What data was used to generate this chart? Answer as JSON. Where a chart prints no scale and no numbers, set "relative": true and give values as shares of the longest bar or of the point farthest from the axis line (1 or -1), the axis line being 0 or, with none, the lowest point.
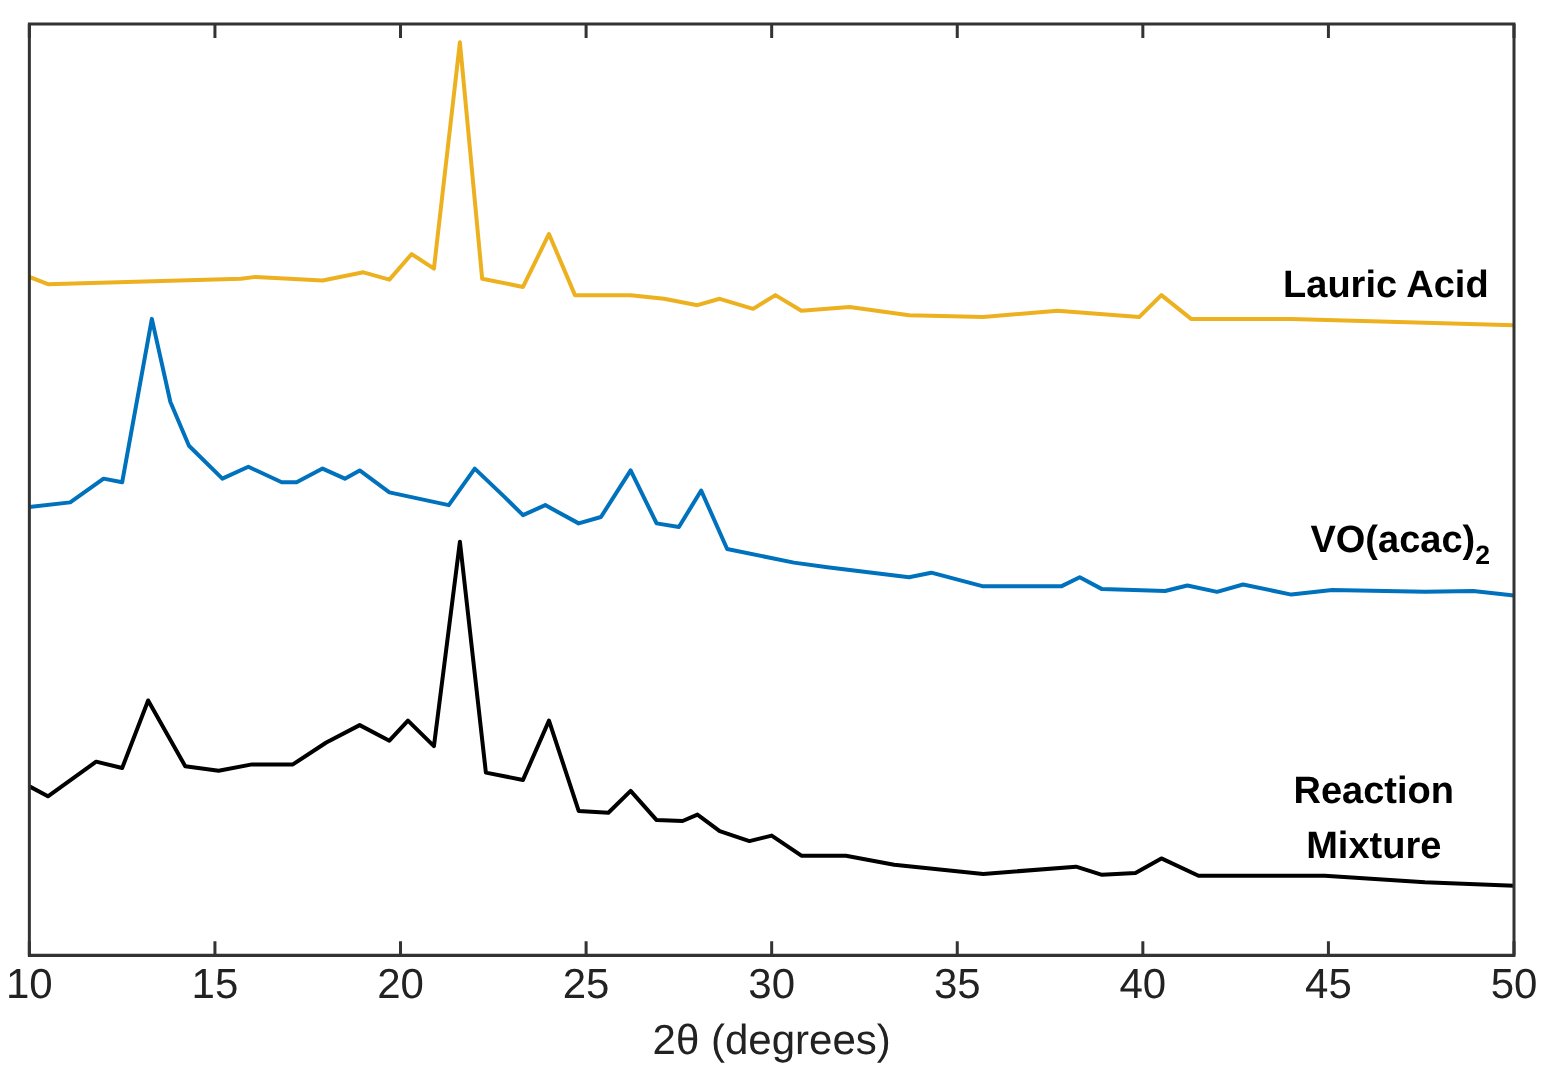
{
  "chart_data": {
    "type": "line",
    "xlabel": "2θ (degrees)",
    "relative": true,
    "xlim": [
      10,
      50
    ],
    "xticks": [
      10,
      15,
      20,
      25,
      30,
      35,
      40,
      45,
      50
    ],
    "grid": false,
    "legend": false,
    "marker": "none",
    "line_style": "solid",
    "series": [
      {
        "name": "Lauric Acid",
        "color": "#edb120",
        "x": [
          10,
          10.5,
          15.7,
          16.1,
          17.9,
          19.0,
          19.7,
          20.3,
          20.9,
          21.6,
          22.2,
          23.3,
          24.0,
          24.7,
          26.2,
          27.1,
          28.0,
          28.6,
          29.5,
          30.1,
          30.8,
          32.1,
          33.7,
          35.7,
          37.7,
          39.9,
          40.5,
          41.3,
          44.0,
          50
        ],
        "values": [
          0.743,
          0.735,
          0.741,
          0.743,
          0.739,
          0.748,
          0.74,
          0.768,
          0.752,
          1.0,
          0.741,
          0.732,
          0.79,
          0.723,
          0.723,
          0.719,
          0.712,
          0.719,
          0.708,
          0.723,
          0.706,
          0.71,
          0.701,
          0.699,
          0.706,
          0.699,
          0.723,
          0.697,
          0.697,
          0.69
        ]
      },
      {
        "name": "VO(acac)$_{2}$",
        "color": "#0072bd",
        "x": [
          10,
          11.1,
          12.0,
          12.5,
          13.3,
          13.8,
          14.3,
          15.2,
          15.9,
          16.8,
          17.2,
          17.9,
          18.5,
          18.9,
          19.7,
          21.3,
          22.0,
          22.8,
          23.3,
          23.9,
          24.8,
          25.4,
          26.2,
          26.9,
          27.5,
          28.1,
          28.8,
          30.6,
          31.5,
          33.7,
          34.3,
          35.7,
          37.8,
          38.3,
          38.9,
          40.6,
          41.2,
          42.0,
          42.7,
          44.0,
          45.1,
          47.6,
          48.9,
          50
        ],
        "values": [
          0.491,
          0.496,
          0.522,
          0.518,
          0.697,
          0.606,
          0.558,
          0.522,
          0.535,
          0.518,
          0.518,
          0.533,
          0.522,
          0.531,
          0.507,
          0.493,
          0.533,
          0.502,
          0.482,
          0.493,
          0.473,
          0.48,
          0.531,
          0.473,
          0.469,
          0.509,
          0.445,
          0.43,
          0.425,
          0.414,
          0.419,
          0.404,
          0.404,
          0.414,
          0.401,
          0.399,
          0.405,
          0.398,
          0.406,
          0.395,
          0.4,
          0.398,
          0.399,
          0.394
        ]
      },
      {
        "name": "Reaction Mixture",
        "color": "#000000",
        "x": [
          10,
          10.5,
          11.8,
          12.5,
          13.2,
          14.2,
          15.1,
          16.0,
          17.1,
          18.0,
          18.9,
          19.7,
          20.2,
          20.9,
          21.6,
          22.3,
          23.3,
          24.0,
          24.8,
          25.6,
          26.2,
          26.9,
          27.6,
          28.0,
          28.6,
          29.4,
          30.0,
          30.8,
          32.0,
          33.3,
          35.7,
          38.2,
          38.9,
          39.8,
          40.5,
          41.5,
          44.9,
          47.6,
          50
        ],
        "values": [
          0.185,
          0.174,
          0.212,
          0.205,
          0.279,
          0.207,
          0.202,
          0.209,
          0.209,
          0.233,
          0.252,
          0.235,
          0.257,
          0.229,
          0.453,
          0.2,
          0.192,
          0.257,
          0.158,
          0.156,
          0.18,
          0.148,
          0.147,
          0.154,
          0.136,
          0.125,
          0.131,
          0.109,
          0.109,
          0.099,
          0.089,
          0.097,
          0.088,
          0.09,
          0.106,
          0.087,
          0.087,
          0.08,
          0.076
        ]
      }
    ]
  }
}
